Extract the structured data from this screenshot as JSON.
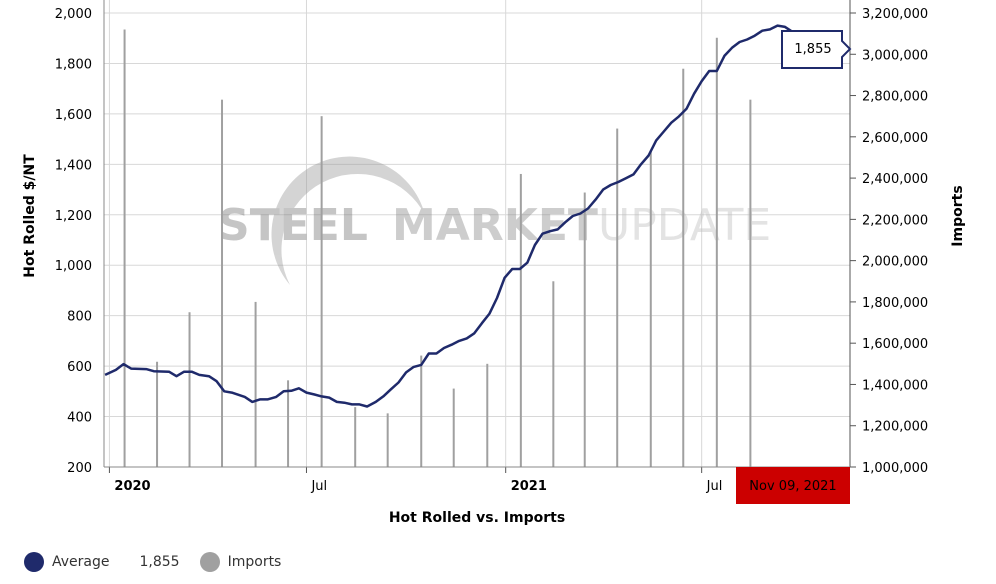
{
  "chart_data": {
    "type": "line",
    "title": "",
    "xlabel": "Hot Rolled vs. Imports",
    "ylabel_left": "Hot Rolled $/NT",
    "ylabel_right": "Imports",
    "ylim_left": [
      200,
      2000
    ],
    "ylim_right": [
      1000000,
      3200000
    ],
    "yticks_left": [
      200,
      400,
      600,
      800,
      1000,
      1200,
      1400,
      1600,
      1800,
      2000
    ],
    "yticks_left_labels": [
      "200",
      "400",
      "600",
      "800",
      "1,000",
      "1,200",
      "1,400",
      "1,600",
      "1,800",
      "2,000"
    ],
    "yticks_right": [
      1000000,
      1200000,
      1400000,
      1600000,
      1800000,
      2000000,
      2200000,
      2400000,
      2600000,
      2800000,
      3000000,
      3200000
    ],
    "yticks_right_labels": [
      "1,000,000",
      "1,200,000",
      "1,400,000",
      "1,600,000",
      "1,800,000",
      "2,000,000",
      "2,200,000",
      "2,400,000",
      "2,600,000",
      "2,800,000",
      "3,000,000",
      "3,200,000"
    ],
    "xlim": [
      "2019-12-27",
      "2021-11-15"
    ],
    "xticks": [
      {
        "date": "2020-01-01",
        "label": "2020",
        "major": true
      },
      {
        "date": "2020-07-01",
        "label": "Jul",
        "major": false
      },
      {
        "date": "2021-01-01",
        "label": "2021",
        "major": true
      },
      {
        "date": "2021-07-01",
        "label": "Jul",
        "major": false
      }
    ],
    "grid": true,
    "series": [
      {
        "name": "Average",
        "axis": "left",
        "type": "line",
        "color": "#1f2a6b",
        "points": [
          [
            "2019-12-28",
            565
          ],
          [
            "2020-01-07",
            585
          ],
          [
            "2020-01-14",
            608
          ],
          [
            "2020-01-21",
            590
          ],
          [
            "2020-02-04",
            588
          ],
          [
            "2020-02-11",
            580
          ],
          [
            "2020-02-25",
            578
          ],
          [
            "2020-03-03",
            560
          ],
          [
            "2020-03-10",
            578
          ],
          [
            "2020-03-17",
            578
          ],
          [
            "2020-03-24",
            565
          ],
          [
            "2020-04-02",
            560
          ],
          [
            "2020-04-09",
            540
          ],
          [
            "2020-04-16",
            500
          ],
          [
            "2020-04-23",
            495
          ],
          [
            "2020-05-05",
            478
          ],
          [
            "2020-05-12",
            458
          ],
          [
            "2020-05-19",
            468
          ],
          [
            "2020-05-26",
            468
          ],
          [
            "2020-06-03",
            478
          ],
          [
            "2020-06-10",
            500
          ],
          [
            "2020-06-17",
            502
          ],
          [
            "2020-06-24",
            512
          ],
          [
            "2020-07-01",
            495
          ],
          [
            "2020-07-08",
            488
          ],
          [
            "2020-07-15",
            480
          ],
          [
            "2020-07-22",
            475
          ],
          [
            "2020-07-29",
            458
          ],
          [
            "2020-08-05",
            455
          ],
          [
            "2020-08-12",
            448
          ],
          [
            "2020-08-19",
            448
          ],
          [
            "2020-08-26",
            440
          ],
          [
            "2020-09-03",
            458
          ],
          [
            "2020-09-10",
            480
          ],
          [
            "2020-09-17",
            508
          ],
          [
            "2020-09-24",
            535
          ],
          [
            "2020-10-01",
            575
          ],
          [
            "2020-10-08",
            597
          ],
          [
            "2020-10-15",
            605
          ],
          [
            "2020-10-22",
            650
          ],
          [
            "2020-10-29",
            650
          ],
          [
            "2020-11-05",
            672
          ],
          [
            "2020-11-12",
            685
          ],
          [
            "2020-11-19",
            700
          ],
          [
            "2020-11-26",
            710
          ],
          [
            "2020-12-03",
            730
          ],
          [
            "2020-12-10",
            770
          ],
          [
            "2020-12-17",
            808
          ],
          [
            "2020-12-24",
            870
          ],
          [
            "2020-12-31",
            950
          ],
          [
            "2021-01-07",
            985
          ],
          [
            "2021-01-14",
            985
          ],
          [
            "2021-01-21",
            1010
          ],
          [
            "2021-01-28",
            1080
          ],
          [
            "2021-02-04",
            1125
          ],
          [
            "2021-02-11",
            1135
          ],
          [
            "2021-02-18",
            1142
          ],
          [
            "2021-02-25",
            1170
          ],
          [
            "2021-03-04",
            1195
          ],
          [
            "2021-03-11",
            1205
          ],
          [
            "2021-03-18",
            1225
          ],
          [
            "2021-03-25",
            1260
          ],
          [
            "2021-04-01",
            1300
          ],
          [
            "2021-04-08",
            1318
          ],
          [
            "2021-04-15",
            1330
          ],
          [
            "2021-04-22",
            1345
          ],
          [
            "2021-04-29",
            1360
          ],
          [
            "2021-05-06",
            1400
          ],
          [
            "2021-05-13",
            1435
          ],
          [
            "2021-05-20",
            1495
          ],
          [
            "2021-05-27",
            1530
          ],
          [
            "2021-06-03",
            1565
          ],
          [
            "2021-06-10",
            1590
          ],
          [
            "2021-06-17",
            1620
          ],
          [
            "2021-06-24",
            1680
          ],
          [
            "2021-07-01",
            1730
          ],
          [
            "2021-07-08",
            1770
          ],
          [
            "2021-07-15",
            1770
          ],
          [
            "2021-07-22",
            1830
          ],
          [
            "2021-07-29",
            1862
          ],
          [
            "2021-08-05",
            1885
          ],
          [
            "2021-08-12",
            1895
          ],
          [
            "2021-08-19",
            1910
          ],
          [
            "2021-08-26",
            1930
          ],
          [
            "2021-09-02",
            1935
          ],
          [
            "2021-09-09",
            1950
          ],
          [
            "2021-09-16",
            1945
          ],
          [
            "2021-09-23",
            1925
          ],
          [
            "2021-09-30",
            1920
          ],
          [
            "2021-10-07",
            1915
          ],
          [
            "2021-10-14",
            1900
          ],
          [
            "2021-10-21",
            1880
          ],
          [
            "2021-10-28",
            1870
          ],
          [
            "2021-11-09",
            1855
          ]
        ]
      },
      {
        "name": "Imports",
        "axis": "right",
        "type": "column",
        "color": "#a0a0a0",
        "points": [
          [
            "2020-01-15",
            3120000
          ],
          [
            "2020-02-14",
            1510000
          ],
          [
            "2020-03-15",
            1750000
          ],
          [
            "2020-04-14",
            2780000
          ],
          [
            "2020-05-15",
            1800000
          ],
          [
            "2020-06-14",
            1420000
          ],
          [
            "2020-07-15",
            2700000
          ],
          [
            "2020-08-15",
            1290000
          ],
          [
            "2020-09-14",
            1260000
          ],
          [
            "2020-10-15",
            1540000
          ],
          [
            "2020-11-14",
            1380000
          ],
          [
            "2020-12-15",
            1500000
          ],
          [
            "2021-01-15",
            2420000
          ],
          [
            "2021-02-14",
            1900000
          ],
          [
            "2021-03-15",
            2330000
          ],
          [
            "2021-04-14",
            2640000
          ],
          [
            "2021-05-15",
            2530000
          ],
          [
            "2021-06-14",
            2930000
          ],
          [
            "2021-07-15",
            3080000
          ],
          [
            "2021-08-15",
            2780000
          ]
        ]
      }
    ],
    "crosshair": {
      "date": "2021-11-09",
      "label": "Nov 09, 2021"
    },
    "tooltip": {
      "value": "1,855"
    },
    "legend": {
      "position": "bottom-left",
      "items": [
        {
          "label": "Average",
          "value": "1,855",
          "color": "#1f2a6b"
        },
        {
          "label": "Imports",
          "color": "#a0a0a0"
        }
      ]
    },
    "watermark": {
      "word1": "STEEL",
      "word2": "MARKET",
      "word3": "UPDATE"
    }
  }
}
